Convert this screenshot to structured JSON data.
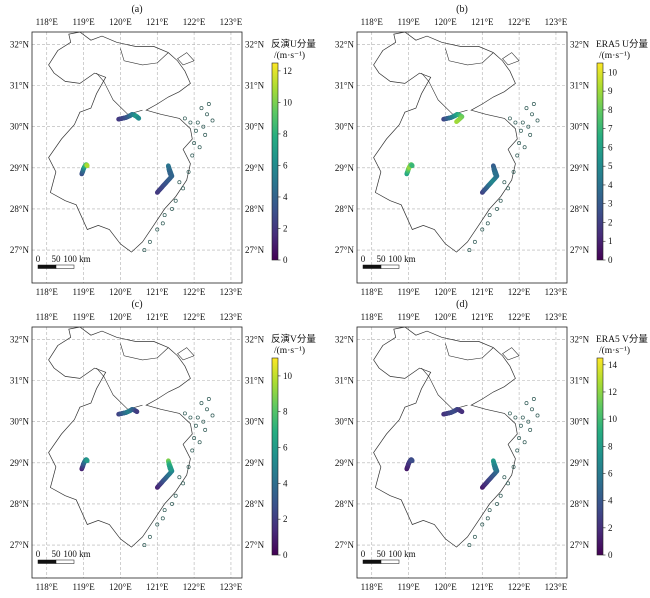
{
  "colors": {
    "viridis": [
      "#440154",
      "#472c7a",
      "#3b518b",
      "#2c718e",
      "#21908d",
      "#27ad81",
      "#5cc863",
      "#aadc32",
      "#fde725"
    ],
    "outline": "#333333",
    "grid": "#b0b0b0"
  },
  "map": {
    "lon_ticks": [
      "118°E",
      "119°E",
      "120°E",
      "121°E",
      "122°E",
      "123°E"
    ],
    "lat_ticks": [
      "32°N",
      "31°N",
      "30°N",
      "29°N",
      "28°N",
      "27°N"
    ],
    "scale_bar": {
      "labels": [
        "0",
        "50",
        "100 km"
      ]
    }
  },
  "panels": [
    {
      "label": "(a)",
      "colorbar": {
        "title": "反演U分量",
        "unit": "/(m·s⁻¹)",
        "min": 0,
        "max": 12.5,
        "ticks": [
          "0",
          "2",
          "4",
          "6",
          "8",
          "10",
          "12"
        ],
        "tick_values": [
          0,
          2,
          4,
          6,
          8,
          10,
          12
        ]
      },
      "tracks": [
        {
          "name": "north-track",
          "points": [
            [
              119.95,
              30.18,
              2
            ],
            [
              120.05,
              30.2,
              2.5
            ],
            [
              120.15,
              30.22,
              3
            ],
            [
              120.25,
              30.26,
              4
            ],
            [
              120.32,
              30.3,
              5
            ],
            [
              120.4,
              30.27,
              6
            ],
            [
              120.45,
              30.24,
              7
            ],
            [
              120.5,
              30.2,
              6
            ]
          ]
        },
        {
          "name": "west-track",
          "points": [
            [
              118.95,
              28.85,
              3
            ],
            [
              118.98,
              28.92,
              4
            ],
            [
              119.0,
              28.98,
              5
            ],
            [
              119.03,
              29.03,
              7
            ],
            [
              119.07,
              29.08,
              9
            ],
            [
              119.1,
              29.05,
              11
            ]
          ]
        },
        {
          "name": "east-track",
          "points": [
            [
              121.0,
              28.4,
              2
            ],
            [
              121.1,
              28.5,
              2.5
            ],
            [
              121.2,
              28.6,
              3
            ],
            [
              121.3,
              28.7,
              3.5
            ],
            [
              121.4,
              28.8,
              4
            ],
            [
              121.3,
              29.05,
              5
            ],
            [
              121.32,
              28.95,
              4.5
            ],
            [
              121.35,
              28.85,
              4
            ]
          ]
        }
      ]
    },
    {
      "label": "(b)",
      "colorbar": {
        "title": "ERA5 U分量",
        "unit": "/(m·s⁻¹)",
        "min": 0,
        "max": 10.5,
        "ticks": [
          "0",
          "1",
          "2",
          "3",
          "4",
          "5",
          "6",
          "7",
          "8",
          "9",
          "10"
        ],
        "tick_values": [
          0,
          1,
          2,
          3,
          4,
          5,
          6,
          7,
          8,
          9,
          10
        ]
      },
      "tracks": [
        {
          "name": "north-track",
          "points": [
            [
              119.95,
              30.18,
              2
            ],
            [
              120.05,
              30.2,
              3
            ],
            [
              120.15,
              30.22,
              4
            ],
            [
              120.25,
              30.26,
              5
            ],
            [
              120.32,
              30.3,
              6
            ],
            [
              120.4,
              30.27,
              7
            ],
            [
              120.45,
              30.24,
              8
            ],
            [
              120.3,
              30.12,
              9
            ]
          ]
        },
        {
          "name": "west-track",
          "points": [
            [
              118.95,
              28.85,
              6
            ],
            [
              118.98,
              28.92,
              7
            ],
            [
              119.0,
              28.98,
              8
            ],
            [
              119.03,
              29.03,
              9
            ],
            [
              119.07,
              29.08,
              8
            ],
            [
              119.1,
              29.05,
              7
            ]
          ]
        },
        {
          "name": "east-track",
          "points": [
            [
              121.0,
              28.4,
              2
            ],
            [
              121.1,
              28.5,
              3
            ],
            [
              121.2,
              28.6,
              4
            ],
            [
              121.3,
              28.7,
              5
            ],
            [
              121.4,
              28.8,
              4
            ],
            [
              121.3,
              29.05,
              3
            ],
            [
              121.32,
              28.95,
              3.5
            ],
            [
              121.35,
              28.85,
              4
            ]
          ]
        }
      ]
    },
    {
      "label": "(c)",
      "colorbar": {
        "title": "反演V分量",
        "unit": "/(m·s⁻¹)",
        "min": 0,
        "max": 11,
        "ticks": [
          "0",
          "2",
          "4",
          "6",
          "8",
          "10"
        ],
        "tick_values": [
          0,
          2,
          4,
          6,
          8,
          10
        ]
      },
      "tracks": [
        {
          "name": "north-track",
          "points": [
            [
              119.95,
              30.18,
              2
            ],
            [
              120.05,
              30.2,
              3
            ],
            [
              120.15,
              30.22,
              4
            ],
            [
              120.25,
              30.26,
              5
            ],
            [
              120.32,
              30.3,
              4
            ],
            [
              120.4,
              30.27,
              3
            ],
            [
              120.45,
              30.24,
              2
            ]
          ]
        },
        {
          "name": "west-track",
          "points": [
            [
              118.95,
              28.85,
              1
            ],
            [
              118.98,
              28.92,
              2
            ],
            [
              119.0,
              28.98,
              3
            ],
            [
              119.03,
              29.03,
              4
            ],
            [
              119.07,
              29.08,
              5
            ],
            [
              119.1,
              29.05,
              6
            ]
          ]
        },
        {
          "name": "east-track",
          "points": [
            [
              121.0,
              28.4,
              1
            ],
            [
              121.1,
              28.5,
              2
            ],
            [
              121.2,
              28.6,
              3
            ],
            [
              121.3,
              28.7,
              4
            ],
            [
              121.4,
              28.8,
              5
            ],
            [
              121.3,
              29.05,
              9
            ],
            [
              121.32,
              28.95,
              7
            ],
            [
              121.35,
              28.85,
              6
            ]
          ]
        }
      ]
    },
    {
      "label": "(d)",
      "colorbar": {
        "title": "ERA5 V分量",
        "unit": "/(m·s⁻¹)",
        "min": 0,
        "max": 14.5,
        "ticks": [
          "0",
          "2",
          "4",
          "6",
          "8",
          "10",
          "12",
          "14"
        ],
        "tick_values": [
          0,
          2,
          4,
          6,
          8,
          10,
          12,
          14
        ]
      },
      "tracks": [
        {
          "name": "north-track",
          "points": [
            [
              119.95,
              30.18,
              2
            ],
            [
              120.05,
              30.2,
              2.5
            ],
            [
              120.15,
              30.22,
              3
            ],
            [
              120.25,
              30.26,
              3.5
            ],
            [
              120.32,
              30.3,
              3
            ],
            [
              120.4,
              30.27,
              2.5
            ],
            [
              120.45,
              30.24,
              2
            ]
          ]
        },
        {
          "name": "west-track",
          "points": [
            [
              118.95,
              28.85,
              1
            ],
            [
              118.98,
              28.92,
              1.5
            ],
            [
              119.0,
              28.98,
              2
            ],
            [
              119.03,
              29.03,
              2.5
            ],
            [
              119.07,
              29.08,
              3
            ],
            [
              119.1,
              29.05,
              3.5
            ]
          ]
        },
        {
          "name": "east-track",
          "points": [
            [
              121.0,
              28.4,
              1
            ],
            [
              121.1,
              28.5,
              2
            ],
            [
              121.2,
              28.6,
              3
            ],
            [
              121.3,
              28.7,
              4
            ],
            [
              121.4,
              28.8,
              5
            ],
            [
              121.3,
              29.05,
              8
            ],
            [
              121.32,
              28.95,
              7
            ],
            [
              121.35,
              28.85,
              6
            ]
          ]
        }
      ]
    }
  ]
}
